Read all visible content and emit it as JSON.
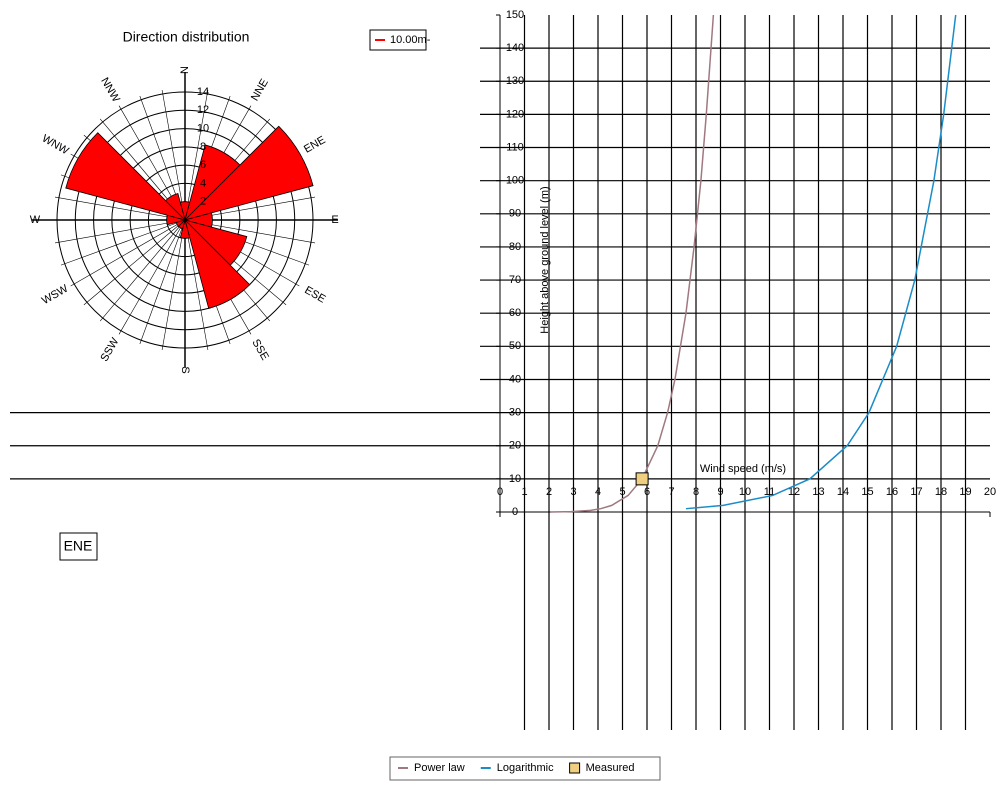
{
  "chart_data": [
    {
      "type": "rose",
      "title": "Direction distribution",
      "categories": [
        "N",
        "NNE",
        "ENE",
        "E",
        "ESE",
        "SSE",
        "S",
        "SSW",
        "WSW",
        "W",
        "WNW",
        "NNW"
      ],
      "series": [
        {
          "name": "10.00m-",
          "color": "#ff0000",
          "values": [
            2,
            8.5,
            14.5,
            3,
            7,
            10,
            2,
            1,
            1,
            2,
            13.5,
            3
          ]
        }
      ],
      "rlim": [
        0,
        14
      ],
      "rticks": [
        2,
        4,
        6,
        8,
        10,
        12,
        14
      ],
      "annotation": "ENE"
    },
    {
      "type": "line",
      "xlabel": "Wind speed (m/s)",
      "ylabel": "Height above ground level (m)",
      "xlim": [
        0,
        20
      ],
      "xticks": [
        0,
        1,
        2,
        3,
        4,
        5,
        6,
        7,
        8,
        9,
        10,
        11,
        12,
        13,
        14,
        15,
        16,
        17,
        18,
        19,
        20
      ],
      "ylim": [
        0,
        150
      ],
      "yticks": [
        0,
        10,
        20,
        30,
        40,
        50,
        60,
        70,
        80,
        90,
        100,
        110,
        120,
        130,
        140,
        150
      ],
      "grid": true,
      "series": [
        {
          "name": "Power law",
          "color": "#a07880",
          "x": [
            2.06,
            2.91,
            3.7,
            4.11,
            4.56,
            5.23,
            5.8,
            6.44,
            6.84,
            7.14,
            7.59,
            7.92,
            8.2,
            8.42,
            8.71
          ],
          "values": [
            0.01,
            0.1,
            0.5,
            1,
            2,
            5,
            10,
            20,
            30,
            40,
            60,
            80,
            100,
            120,
            150
          ]
        },
        {
          "name": "Logarithmic",
          "color": "#1a8cc8",
          "x": [
            7.59,
            9.11,
            11.13,
            12.65,
            14.17,
            15.06,
            16.19,
            16.93,
            17.71,
            18.11,
            18.6
          ],
          "values": [
            1,
            2,
            5,
            10,
            20,
            30,
            50,
            70,
            100,
            120,
            150
          ]
        },
        {
          "name": "Measured",
          "color": "#f0d080",
          "marker": "square",
          "x": [
            5.8
          ],
          "values": [
            10
          ]
        }
      ]
    }
  ]
}
